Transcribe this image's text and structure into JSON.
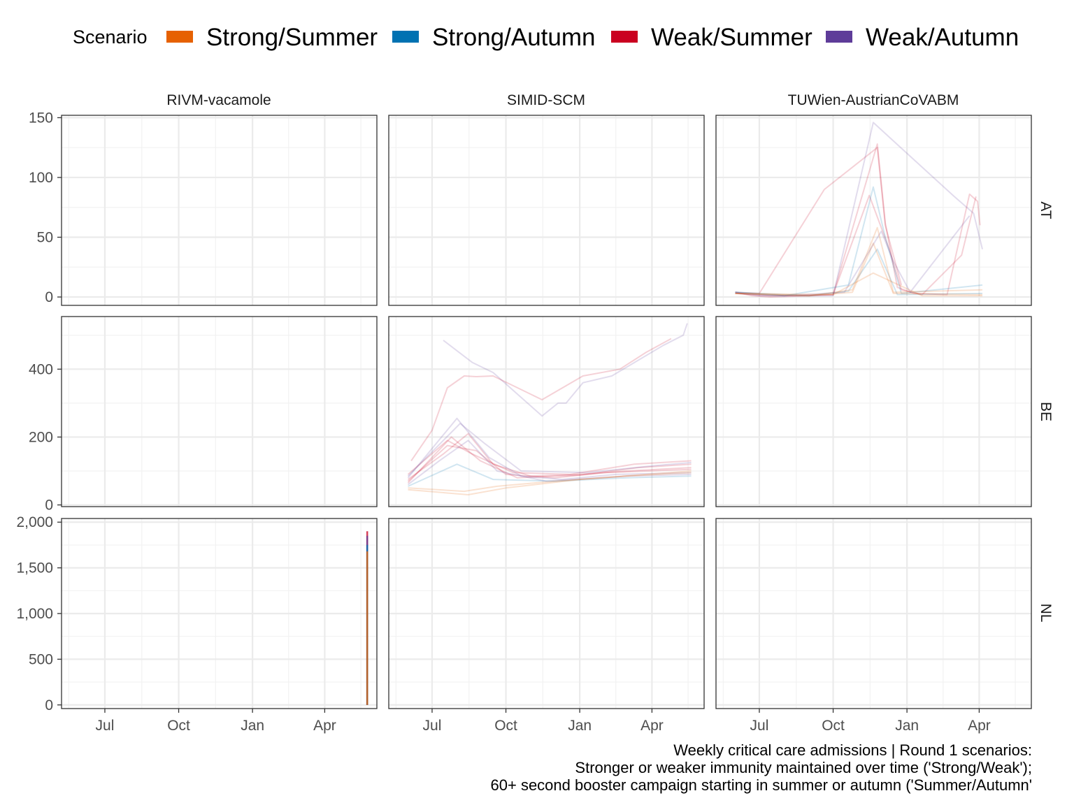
{
  "legend": {
    "title": "Scenario",
    "items": [
      {
        "label": "Strong/Summer",
        "color": "#E66101"
      },
      {
        "label": "Strong/Autumn",
        "color": "#0072B2"
      },
      {
        "label": "Weak/Summer",
        "color": "#CA0020"
      },
      {
        "label": "Weak/Autumn",
        "color": "#5E3C99"
      }
    ]
  },
  "caption": [
    "Weekly critical care admissions | Round 1 scenarios:",
    "Stronger or weaker immunity maintained over time ('Strong/Weak');",
    "60+ second booster campaign starting in summer or autumn ('Summer/Autumn'"
  ],
  "chart_data": {
    "type": "line",
    "facet_cols": [
      "RIVM-vacamole",
      "SIMID-SCM",
      "TUWien-AustrianCoVABM"
    ],
    "facet_rows": [
      "AT",
      "BE",
      "NL"
    ],
    "x_axis": {
      "range": [
        "2022-05-08",
        "2023-06-05"
      ],
      "ticks": [
        {
          "label": "Jul",
          "date": "2022-07-01"
        },
        {
          "label": "Oct",
          "date": "2022-10-01"
        },
        {
          "label": "Jan",
          "date": "2023-01-01"
        },
        {
          "label": "Apr",
          "date": "2023-04-01"
        }
      ]
    },
    "y_axes": {
      "AT": {
        "range": [
          -7,
          152
        ],
        "ticks": [
          0,
          50,
          100,
          150
        ],
        "tick_labels": [
          "0",
          "50",
          "100",
          "150"
        ]
      },
      "BE": {
        "range": [
          -5,
          555
        ],
        "ticks": [
          0,
          200,
          400
        ],
        "tick_labels": [
          "0",
          "200",
          "400"
        ]
      },
      "NL": {
        "range": [
          -40,
          2040
        ],
        "ticks": [
          0,
          500,
          1000,
          1500,
          2000
        ],
        "tick_labels": [
          "0",
          "500",
          "1,000",
          "1,500",
          "2,000"
        ]
      }
    },
    "grid": true,
    "legend_position": "top",
    "panels": [
      {
        "row": "AT",
        "col": "TUWien-AustrianCoVABM",
        "series": [
          {
            "scenario": "Weak/Summer",
            "points": [
              [
                "2022-06-01",
                4
              ],
              [
                "2022-06-22",
                1
              ],
              [
                "2022-07-15",
                0
              ],
              [
                "2022-09-01",
                1
              ],
              [
                "2022-10-01",
                2
              ],
              [
                "2022-11-25",
                128
              ],
              [
                "2022-12-05",
                62
              ],
              [
                "2022-12-20",
                8
              ],
              [
                "2023-01-10",
                3
              ],
              [
                "2023-02-20",
                2
              ],
              [
                "2023-03-20",
                86
              ],
              [
                "2023-03-30",
                80
              ],
              [
                "2023-04-02",
                60
              ]
            ]
          },
          {
            "scenario": "Weak/Summer",
            "points": [
              [
                "2022-06-01",
                3
              ],
              [
                "2022-07-15",
                1
              ],
              [
                "2022-10-01",
                2
              ],
              [
                "2022-11-15",
                85
              ],
              [
                "2022-12-10",
                40
              ],
              [
                "2022-12-25",
                6
              ],
              [
                "2023-01-20",
                2
              ],
              [
                "2023-03-10",
                35
              ],
              [
                "2023-03-28",
                84
              ]
            ]
          },
          {
            "scenario": "Weak/Autumn",
            "points": [
              [
                "2022-06-01",
                4
              ],
              [
                "2022-07-01",
                1
              ],
              [
                "2022-10-01",
                1
              ],
              [
                "2022-11-20",
                146
              ],
              [
                "2023-03-01",
                84
              ],
              [
                "2023-03-25",
                70
              ],
              [
                "2023-04-05",
                40
              ]
            ]
          },
          {
            "scenario": "Weak/Autumn",
            "points": [
              [
                "2022-06-01",
                3
              ],
              [
                "2022-08-01",
                1
              ],
              [
                "2022-10-15",
                4
              ],
              [
                "2022-11-30",
                55
              ],
              [
                "2022-12-15",
                30
              ],
              [
                "2023-01-05",
                4
              ],
              [
                "2023-03-20",
                68
              ]
            ]
          },
          {
            "scenario": "Weak/Summer",
            "points": [
              [
                "2022-06-01",
                4
              ],
              [
                "2022-07-01",
                3
              ],
              [
                "2022-09-20",
                90
              ],
              [
                "2022-11-25",
                125
              ],
              [
                "2022-12-05",
                60
              ],
              [
                "2022-12-25",
                10
              ]
            ]
          },
          {
            "scenario": "Strong/Autumn",
            "points": [
              [
                "2022-06-01",
                4
              ],
              [
                "2022-08-01",
                1
              ],
              [
                "2022-10-20",
                10
              ],
              [
                "2022-11-20",
                92
              ],
              [
                "2022-12-05",
                50
              ],
              [
                "2022-12-25",
                3
              ],
              [
                "2023-04-05",
                10
              ]
            ]
          },
          {
            "scenario": "Strong/Autumn",
            "points": [
              [
                "2022-06-01",
                4
              ],
              [
                "2022-09-01",
                1
              ],
              [
                "2022-10-20",
                5
              ],
              [
                "2022-11-25",
                40
              ],
              [
                "2022-12-20",
                2
              ],
              [
                "2023-04-05",
                3
              ]
            ]
          },
          {
            "scenario": "Strong/Summer",
            "points": [
              [
                "2022-06-01",
                3
              ],
              [
                "2022-09-01",
                1
              ],
              [
                "2022-10-25",
                6
              ],
              [
                "2022-11-25",
                58
              ],
              [
                "2022-12-15",
                4
              ],
              [
                "2023-04-05",
                6
              ]
            ]
          },
          {
            "scenario": "Strong/Summer",
            "points": [
              [
                "2022-06-01",
                3
              ],
              [
                "2022-09-01",
                1
              ],
              [
                "2022-10-25",
                4
              ],
              [
                "2022-11-20",
                45
              ],
              [
                "2022-12-15",
                3
              ],
              [
                "2023-04-05",
                2
              ]
            ]
          },
          {
            "scenario": "Strong/Summer",
            "points": [
              [
                "2022-06-01",
                3
              ],
              [
                "2022-10-01",
                2
              ],
              [
                "2022-11-20",
                20
              ],
              [
                "2023-01-20",
                1
              ],
              [
                "2023-04-05",
                1
              ]
            ]
          }
        ]
      },
      {
        "row": "BE",
        "col": "SIMID-SCM",
        "series": [
          {
            "scenario": "Weak/Autumn",
            "points": [
              [
                "2022-07-15",
                485
              ],
              [
                "2022-08-20",
                420
              ],
              [
                "2022-09-15",
                390
              ],
              [
                "2022-11-15",
                262
              ],
              [
                "2022-12-05",
                300
              ],
              [
                "2022-12-15",
                300
              ],
              [
                "2023-01-05",
                360
              ],
              [
                "2023-02-10",
                380
              ],
              [
                "2023-04-15",
                470
              ],
              [
                "2023-05-10",
                500
              ],
              [
                "2023-05-15",
                535
              ]
            ]
          },
          {
            "scenario": "Weak/Summer",
            "points": [
              [
                "2022-06-05",
                130
              ],
              [
                "2022-07-01",
                220
              ],
              [
                "2022-07-20",
                345
              ],
              [
                "2022-08-10",
                380
              ],
              [
                "2022-08-25",
                378
              ],
              [
                "2022-09-15",
                380
              ],
              [
                "2022-11-15",
                310
              ],
              [
                "2023-01-05",
                380
              ],
              [
                "2023-02-20",
                400
              ],
              [
                "2023-03-25",
                450
              ],
              [
                "2023-04-25",
                490
              ]
            ]
          },
          {
            "scenario": "Weak/Summer",
            "points": [
              [
                "2022-06-01",
                75
              ],
              [
                "2022-07-15",
                150
              ],
              [
                "2022-08-15",
                210
              ],
              [
                "2022-09-15",
                120
              ],
              [
                "2022-11-01",
                85
              ],
              [
                "2023-01-01",
                90
              ],
              [
                "2023-03-01",
                100
              ],
              [
                "2023-05-20",
                110
              ]
            ]
          },
          {
            "scenario": "Weak/Summer",
            "points": [
              [
                "2022-06-01",
                70
              ],
              [
                "2022-07-20",
                175
              ],
              [
                "2022-08-25",
                160
              ],
              [
                "2022-10-01",
                90
              ],
              [
                "2022-12-01",
                80
              ],
              [
                "2023-02-01",
                95
              ],
              [
                "2023-05-20",
                105
              ]
            ]
          },
          {
            "scenario": "Weak/Autumn",
            "points": [
              [
                "2022-06-01",
                80
              ],
              [
                "2022-08-01",
                255
              ],
              [
                "2022-09-10",
                140
              ],
              [
                "2022-10-20",
                85
              ],
              [
                "2022-12-10",
                75
              ],
              [
                "2023-02-15",
                90
              ],
              [
                "2023-05-20",
                95
              ]
            ]
          },
          {
            "scenario": "Weak/Autumn",
            "points": [
              [
                "2022-06-01",
                60
              ],
              [
                "2022-07-10",
                130
              ],
              [
                "2022-08-15",
                190
              ],
              [
                "2022-09-20",
                100
              ],
              [
                "2022-11-20",
                70
              ],
              [
                "2023-03-01",
                85
              ],
              [
                "2023-05-20",
                90
              ]
            ]
          },
          {
            "scenario": "Weak/Summer",
            "points": [
              [
                "2022-06-01",
                65
              ],
              [
                "2022-07-25",
                200
              ],
              [
                "2022-08-30",
                130
              ],
              [
                "2022-10-15",
                80
              ],
              [
                "2023-01-01",
                88
              ],
              [
                "2023-03-15",
                110
              ],
              [
                "2023-05-20",
                120
              ]
            ]
          },
          {
            "scenario": "Strong/Autumn",
            "points": [
              [
                "2022-06-01",
                55
              ],
              [
                "2022-08-01",
                120
              ],
              [
                "2022-09-15",
                75
              ],
              [
                "2022-12-01",
                70
              ],
              [
                "2023-03-01",
                80
              ],
              [
                "2023-05-20",
                85
              ]
            ]
          },
          {
            "scenario": "Strong/Summer",
            "points": [
              [
                "2022-06-01",
                50
              ],
              [
                "2022-08-10",
                40
              ],
              [
                "2022-09-20",
                55
              ],
              [
                "2022-12-01",
                70
              ],
              [
                "2023-03-01",
                85
              ],
              [
                "2023-05-20",
                95
              ]
            ]
          },
          {
            "scenario": "Strong/Summer",
            "points": [
              [
                "2022-06-01",
                45
              ],
              [
                "2022-08-15",
                30
              ],
              [
                "2022-10-01",
                50
              ],
              [
                "2023-01-01",
                75
              ],
              [
                "2023-05-20",
                100
              ]
            ]
          },
          {
            "scenario": "Weak/Summer",
            "points": [
              [
                "2022-06-01",
                90
              ],
              [
                "2022-07-20",
                190
              ],
              [
                "2022-08-20",
                150
              ],
              [
                "2022-10-10",
                95
              ],
              [
                "2022-12-20",
                90
              ],
              [
                "2023-03-10",
                120
              ],
              [
                "2023-05-20",
                130
              ]
            ]
          },
          {
            "scenario": "Weak/Autumn",
            "points": [
              [
                "2022-06-01",
                85
              ],
              [
                "2022-08-05",
                240
              ],
              [
                "2022-09-05",
                180
              ],
              [
                "2022-10-20",
                100
              ],
              [
                "2023-01-10",
                95
              ],
              [
                "2023-04-01",
                115
              ],
              [
                "2023-05-20",
                125
              ]
            ]
          }
        ]
      },
      {
        "row": "NL",
        "col": "RIVM-vacamole",
        "series": [
          {
            "scenario": "Weak/Summer",
            "points": [
              [
                "2023-05-24",
                0
              ],
              [
                "2023-05-24",
                1900
              ]
            ]
          },
          {
            "scenario": "Weak/Autumn",
            "points": [
              [
                "2023-05-24",
                0
              ],
              [
                "2023-05-24",
                1850
              ]
            ]
          },
          {
            "scenario": "Strong/Autumn",
            "points": [
              [
                "2023-05-24",
                0
              ],
              [
                "2023-05-24",
                1750
              ]
            ]
          },
          {
            "scenario": "Strong/Summer",
            "points": [
              [
                "2023-05-24",
                0
              ],
              [
                "2023-05-24",
                1680
              ]
            ]
          }
        ]
      }
    ]
  }
}
